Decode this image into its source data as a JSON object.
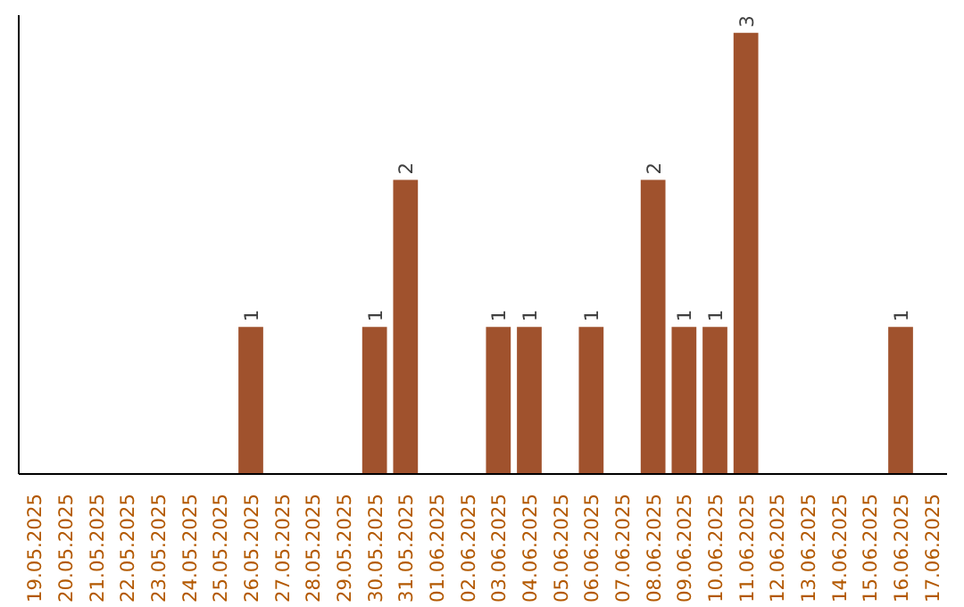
{
  "chart_data": {
    "type": "bar",
    "categories": [
      "19.05.2025",
      "20.05.2025",
      "21.05.2025",
      "22.05.2025",
      "23.05.2025",
      "24.05.2025",
      "25.05.2025",
      "26.05.2025",
      "27.05.2025",
      "28.05.2025",
      "29.05.2025",
      "30.05.2025",
      "31.05.2025",
      "01.06.2025",
      "02.06.2025",
      "03.06.2025",
      "04.06.2025",
      "05.06.2025",
      "06.06.2025",
      "07.06.2025",
      "08.06.2025",
      "09.06.2025",
      "10.06.2025",
      "11.06.2025",
      "12.06.2025",
      "13.06.2025",
      "14.06.2025",
      "15.06.2025",
      "16.06.2025",
      "17.06.2025"
    ],
    "values": [
      0,
      0,
      0,
      0,
      0,
      0,
      0,
      1,
      0,
      0,
      0,
      1,
      2,
      0,
      0,
      1,
      1,
      0,
      1,
      0,
      2,
      1,
      1,
      3,
      0,
      0,
      0,
      0,
      1,
      0
    ],
    "value_labels": [
      null,
      null,
      null,
      null,
      null,
      null,
      null,
      "1",
      null,
      null,
      null,
      "1",
      "2",
      null,
      null,
      "1",
      "1",
      null,
      "1",
      null,
      "2",
      "1",
      "1",
      "3",
      null,
      null,
      null,
      null,
      "1",
      null
    ],
    "color": "#a0522d",
    "grid": false
  }
}
